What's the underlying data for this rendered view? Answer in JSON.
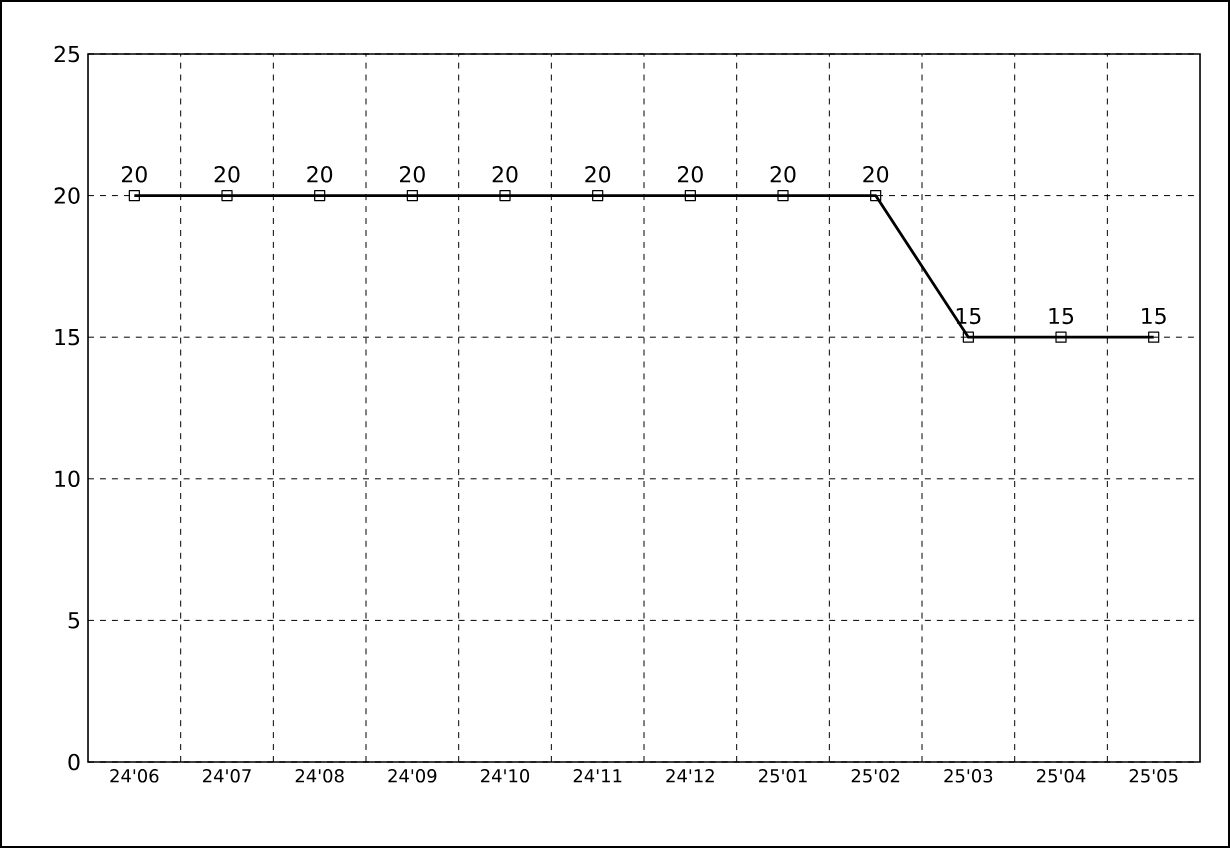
{
  "chart_data": {
    "type": "line",
    "categories": [
      "24'06",
      "24'07",
      "24'08",
      "24'09",
      "24'10",
      "24'11",
      "24'12",
      "25'01",
      "25'02",
      "25'03",
      "25'04",
      "25'05"
    ],
    "values": [
      20,
      20,
      20,
      20,
      20,
      20,
      20,
      20,
      20,
      15,
      15,
      15
    ],
    "color": "#000000",
    "ylim": [
      0,
      25
    ],
    "yticks": [
      0,
      5,
      10,
      15,
      20,
      25
    ],
    "grid": true,
    "marker": "square",
    "line_style": "solid",
    "data_labels": true
  }
}
